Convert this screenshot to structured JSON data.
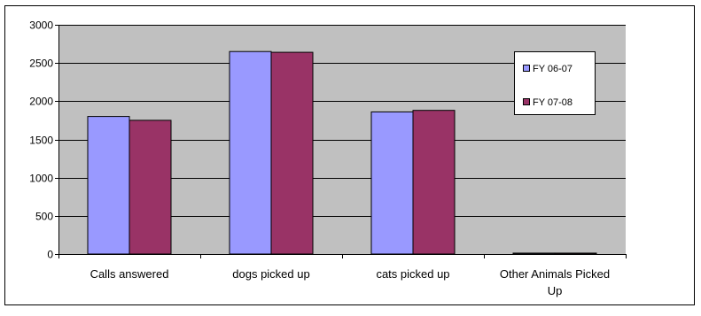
{
  "chart_data": {
    "type": "bar",
    "title": "",
    "xlabel": "",
    "ylabel": "",
    "categories": [
      "Calls answered",
      "dogs picked up",
      "cats picked up",
      "Other Animals Picked Up"
    ],
    "category_display_lines": [
      [
        "Calls answered"
      ],
      [
        "dogs picked up"
      ],
      [
        "cats picked up"
      ],
      [
        "Other Animals Picked",
        "Up"
      ]
    ],
    "series": [
      {
        "name": "FY 06-07",
        "color": "#9999ff",
        "values": [
          1800,
          2650,
          1860,
          12
        ]
      },
      {
        "name": "FY 07-08",
        "color": "#993366",
        "values": [
          1750,
          2640,
          1880,
          12
        ]
      }
    ],
    "ylim": [
      0,
      3000
    ],
    "yticks": [
      0,
      500,
      1000,
      1500,
      2000,
      2500,
      3000
    ],
    "grid": true,
    "plot_background": "#c0c0c0",
    "legend_position": "right"
  }
}
